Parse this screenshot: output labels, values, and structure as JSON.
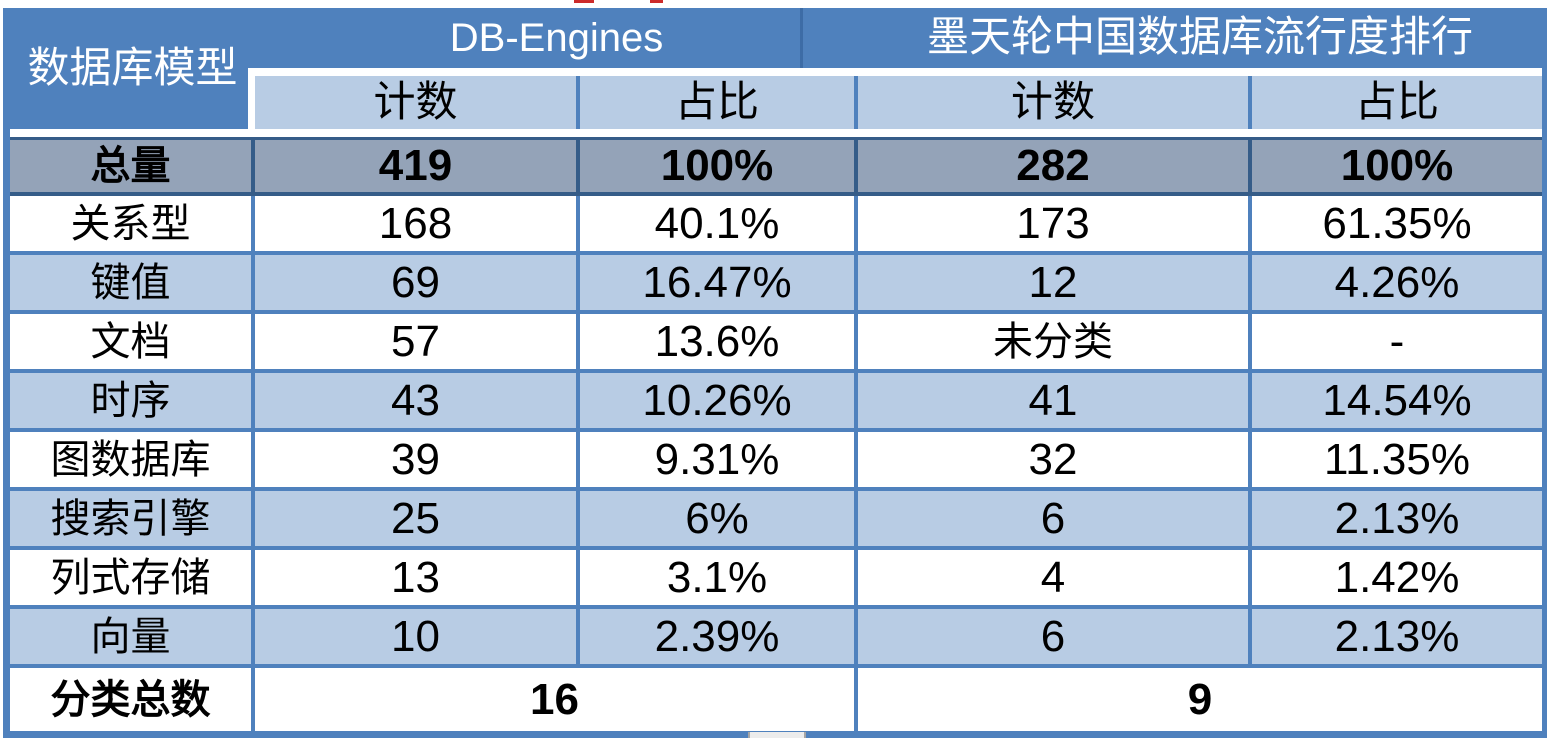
{
  "table": {
    "corner_header": "数据库模型",
    "sections": [
      {
        "title": "DB-Engines"
      },
      {
        "title": "墨天轮中国数据库流行度排行"
      }
    ],
    "sub_headers": [
      "计数",
      "占比",
      "计数",
      "占比"
    ],
    "total_row": {
      "label": "总量",
      "values": [
        "419",
        "100%",
        "282",
        "100%"
      ]
    },
    "rows": [
      {
        "label": "关系型",
        "values": [
          "168",
          "40.1%",
          "173",
          "61.35%"
        ]
      },
      {
        "label": "键值",
        "values": [
          "69",
          "16.47%",
          "12",
          "4.26%"
        ]
      },
      {
        "label": "文档",
        "values": [
          "57",
          "13.6%",
          "未分类",
          "-"
        ]
      },
      {
        "label": "时序",
        "values": [
          "43",
          "10.26%",
          "41",
          "14.54%"
        ]
      },
      {
        "label": "图数据库",
        "values": [
          "39",
          "9.31%",
          "32",
          "11.35%"
        ]
      },
      {
        "label": "搜索引擎",
        "values": [
          "25",
          "6%",
          "6",
          "2.13%"
        ]
      },
      {
        "label": "列式存储",
        "values": [
          "13",
          "3.1%",
          "4",
          "1.42%"
        ]
      },
      {
        "label": "向量",
        "values": [
          "10",
          "2.39%",
          "6",
          "2.13%"
        ]
      }
    ],
    "summary_row": {
      "label": "分类总数",
      "values": [
        "16",
        "9"
      ]
    }
  },
  "colors": {
    "header_blue": "#4f81bd",
    "light_blue": "#b8cce4",
    "total_gray": "#94a3b8",
    "grid_border": "#4f81bd",
    "dark_border": "#355c88"
  }
}
